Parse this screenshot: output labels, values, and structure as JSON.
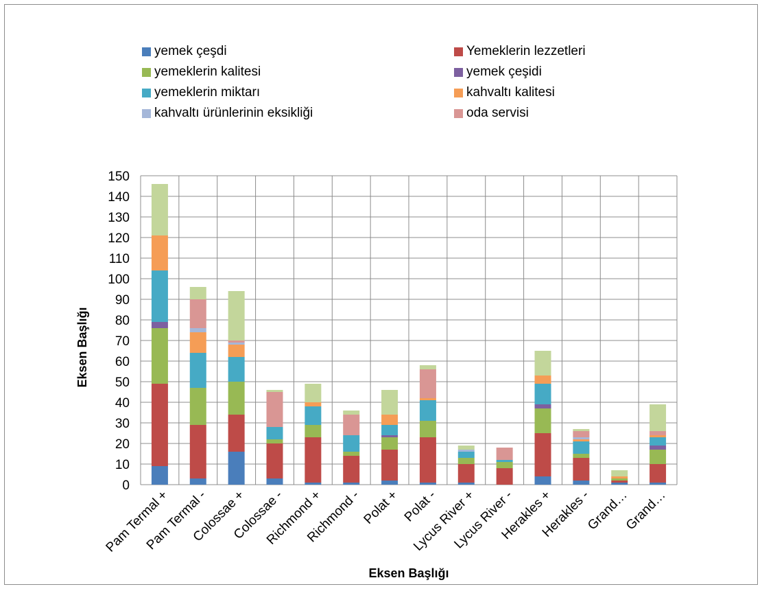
{
  "chart_data": {
    "type": "bar",
    "stacked": true,
    "xlabel": "Eksen Başlığı",
    "ylabel": "Eksen Başlığı",
    "ylim": [
      0,
      150
    ],
    "ytick_step": 10,
    "grid": true,
    "legend_position": "top",
    "categories": [
      "Pam Termal +",
      "Pam Termal -",
      "Colossae +",
      "Colossae -",
      "Richmond +",
      "Richmond -",
      "Polat +",
      "Polat -",
      "Lycus River +",
      "Lycus River -",
      "Herakles +",
      "Herakles -",
      "Grand…",
      "Grand…"
    ],
    "series": [
      {
        "name": "yemek çeşdi",
        "color": "#4a7ebb",
        "values": [
          9,
          3,
          16,
          3,
          1,
          1,
          2,
          1,
          1,
          0,
          4,
          2,
          1,
          1
        ]
      },
      {
        "name": "Yemeklerin lezzetleri",
        "color": "#be4b48",
        "values": [
          40,
          26,
          18,
          17,
          22,
          13,
          15,
          22,
          9,
          8,
          21,
          11,
          1,
          9
        ]
      },
      {
        "name": "yemeklerin kalitesi",
        "color": "#98b954",
        "values": [
          27,
          18,
          16,
          2,
          6,
          2,
          6,
          8,
          3,
          3,
          12,
          2,
          1,
          7
        ]
      },
      {
        "name": "yemek çeşidi",
        "color": "#7d60a0",
        "values": [
          3,
          0,
          0,
          0,
          0,
          0,
          1,
          0,
          0,
          0,
          2,
          0,
          0,
          2
        ]
      },
      {
        "name": "yemeklerin miktarı",
        "color": "#46aac5",
        "values": [
          25,
          17,
          12,
          6,
          9,
          8,
          5,
          10,
          3,
          1,
          10,
          6,
          0,
          4
        ]
      },
      {
        "name": "kahvaltı kalitesi",
        "color": "#f59d56",
        "values": [
          17,
          10,
          6,
          0,
          2,
          0,
          5,
          1,
          0,
          0,
          4,
          1,
          1,
          1
        ]
      },
      {
        "name": "kahvaltı ürünlerinin eksikliği",
        "color": "#a5b7d9",
        "values": [
          0,
          2,
          1,
          0,
          0,
          0,
          0,
          0,
          1,
          0,
          0,
          1,
          0,
          0
        ]
      },
      {
        "name": "oda servisi",
        "color": "#d99694",
        "values": [
          0,
          14,
          1,
          17,
          0,
          10,
          0,
          14,
          0,
          6,
          0,
          3,
          0,
          2
        ]
      },
      {
        "name": "",
        "color": "#c3d69b",
        "values": [
          25,
          6,
          24,
          1,
          9,
          2,
          12,
          2,
          2,
          0,
          12,
          1,
          3,
          13
        ]
      }
    ]
  }
}
